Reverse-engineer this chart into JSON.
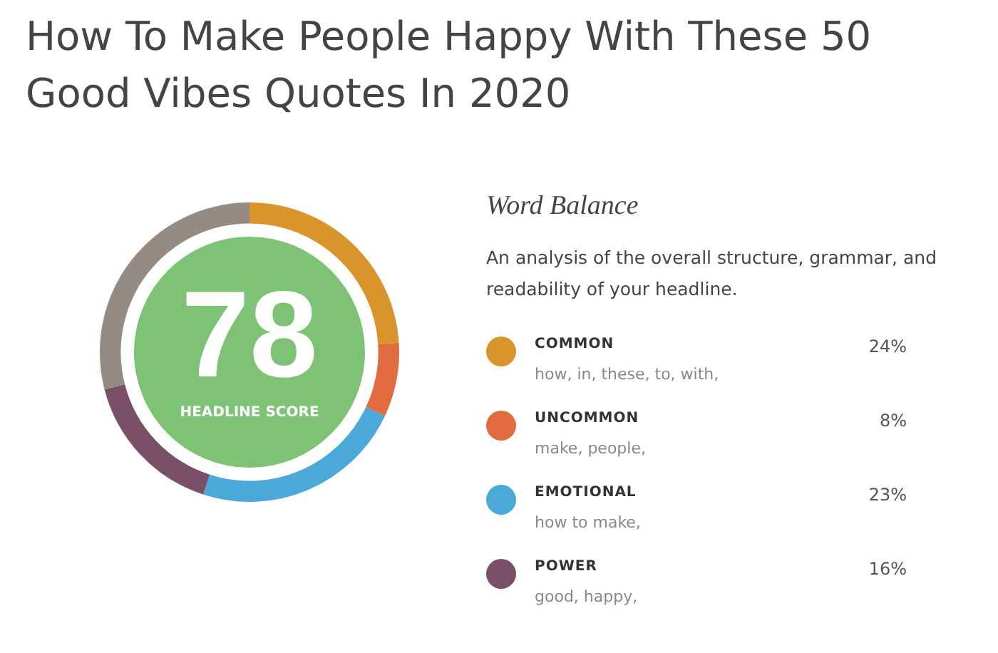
{
  "chart_data": {
    "type": "donut",
    "title": "How To Make People Happy With These 50 Good Vibes Quotes In 2020",
    "subtitle": "Word Balance",
    "categories": [
      "COMMON",
      "UNCOMMON",
      "EMOTIONAL",
      "POWER",
      null
    ],
    "values": [
      24,
      8,
      23,
      16,
      29
    ],
    "colors": [
      "#d9952b",
      "#e06c3f",
      "#4aa9d8",
      "#7a5068",
      "#958b82"
    ],
    "value_labels": [
      "24%",
      "8%",
      "23%",
      "16%",
      null
    ],
    "legend": "right",
    "annotations": [
      "78",
      "HEADLINE SCORE",
      "An analysis of the overall structure, grammar, and readability of your headline.",
      "how, in, these, to, with,",
      "make, people,",
      "how to make,",
      "good, happy,"
    ]
  }
}
